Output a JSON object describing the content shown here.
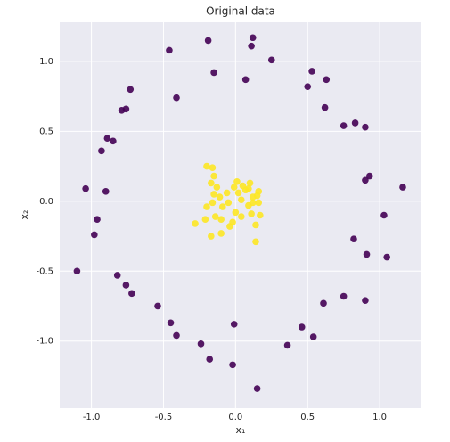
{
  "chart_data": {
    "type": "scatter",
    "title": "Original data",
    "xlabel": "x₁",
    "ylabel": "x₂",
    "xlim": [
      -1.22,
      1.29
    ],
    "ylim": [
      -1.48,
      1.28
    ],
    "xticks": [
      {
        "value": -1,
        "label": "-1.0"
      },
      -0.5,
      {
        "value": 0,
        "label": "0.0"
      },
      0.5,
      {
        "value": 1,
        "label": "1.0"
      }
    ],
    "yticks": [
      {
        "value": -1,
        "label": "-1.0"
      },
      -0.5,
      {
        "value": 0,
        "label": "0.0"
      },
      0.5,
      {
        "value": 1,
        "label": "1.0"
      }
    ],
    "grid": true,
    "series": [
      {
        "color": "#440154",
        "x": [
          -0.19,
          0.12,
          0.11,
          -0.46,
          0.25,
          -0.15,
          0.07,
          0.53,
          0.5,
          0.63,
          -0.41,
          -0.73,
          -0.76,
          -0.79,
          0.62,
          0.75,
          0.83,
          0.9,
          -0.89,
          -0.85,
          -0.93,
          0.93,
          0.9,
          -1.04,
          -0.9,
          1.16,
          -0.96,
          1.03,
          -0.98,
          0.82,
          0.91,
          -1.1,
          1.05,
          -0.82,
          -0.76,
          -0.72,
          0.9,
          0.75,
          -0.54,
          0.61,
          -0.45,
          -0.01,
          0.46,
          -0.41,
          0.54,
          -0.24,
          0.36,
          -0.18,
          -0.02,
          0.15
        ],
        "values": [
          1.15,
          1.17,
          1.11,
          1.08,
          1.01,
          0.92,
          0.87,
          0.93,
          0.82,
          0.87,
          0.74,
          0.8,
          0.66,
          0.65,
          0.67,
          0.54,
          0.56,
          0.53,
          0.45,
          0.43,
          0.36,
          0.18,
          0.15,
          0.09,
          0.07,
          0.1,
          -0.13,
          -0.1,
          -0.24,
          -0.27,
          -0.38,
          -0.5,
          -0.4,
          -0.53,
          -0.6,
          -0.66,
          -0.71,
          -0.68,
          -0.75,
          -0.73,
          -0.87,
          -0.88,
          -0.9,
          -0.96,
          -0.97,
          -1.02,
          -1.03,
          -1.13,
          -1.17,
          -1.34
        ]
      },
      {
        "color": "#fde725",
        "x": [
          -0.2,
          -0.16,
          -0.15,
          -0.17,
          -0.13,
          -0.15,
          -0.11,
          -0.16,
          -0.2,
          -0.09,
          -0.14,
          -0.21,
          -0.28,
          -0.1,
          -0.04,
          0.0,
          0.04,
          0.09,
          0.12,
          0.07,
          0.05,
          0.01,
          0.1,
          0.16,
          0.15,
          0.12,
          0.11,
          0.17,
          0.14,
          0.14,
          -0.01,
          0.02,
          -0.06,
          -0.17,
          -0.1,
          -0.02,
          -0.05,
          0.04,
          0.16,
          0.09
        ],
        "values": [
          0.25,
          0.24,
          0.18,
          0.13,
          0.1,
          0.05,
          0.03,
          -0.01,
          -0.04,
          -0.04,
          -0.11,
          -0.13,
          -0.16,
          -0.13,
          -0.18,
          -0.08,
          -0.11,
          -0.03,
          -0.01,
          0.08,
          0.11,
          0.14,
          0.13,
          0.07,
          0.04,
          0.03,
          -0.09,
          -0.1,
          -0.17,
          -0.29,
          0.1,
          0.06,
          0.06,
          -0.25,
          -0.23,
          -0.15,
          -0.01,
          0.01,
          -0.01,
          0.09
        ]
      }
    ]
  }
}
